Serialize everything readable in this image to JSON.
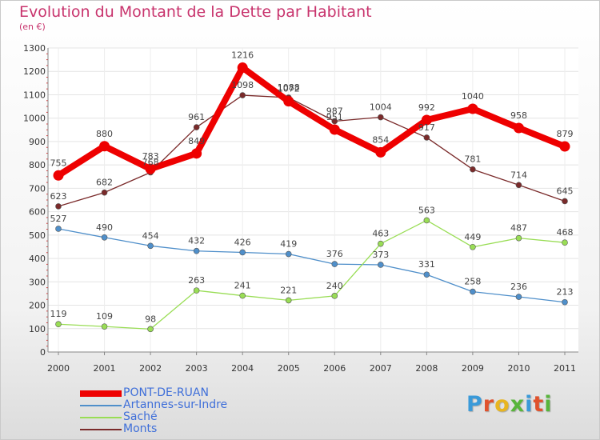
{
  "header": {
    "title": "Evolution du Montant de la Dette par Habitant",
    "subtitle": "(en €)"
  },
  "logo": {
    "text": "Proxiti",
    "colors": [
      "#3a9ad9",
      "#e0522d",
      "#e8b520",
      "#58b53b",
      "#3a9ad9",
      "#e0522d",
      "#58b53b"
    ]
  },
  "chart_data": {
    "type": "line",
    "title": "Evolution du Montant de la Dette par Habitant",
    "subtitle": "(en €)",
    "xlabel": "",
    "ylabel": "",
    "x": [
      "2000",
      "2001",
      "2002",
      "2003",
      "2004",
      "2005",
      "2006",
      "2007",
      "2008",
      "2009",
      "2010",
      "2011"
    ],
    "ylim": [
      0,
      1300
    ],
    "yticks": [
      0,
      100,
      200,
      300,
      400,
      500,
      600,
      700,
      800,
      900,
      1000,
      1100,
      1200,
      1300
    ],
    "grid": true,
    "legend_position": "bottom-left",
    "series": [
      {
        "name": "PONT-DE-RUAN",
        "color": "#ee0000",
        "values": [
          755,
          880,
          783,
          849,
          1216,
          1072,
          951,
          854,
          992,
          1040,
          958,
          879
        ]
      },
      {
        "name": "Artannes-sur-Indre",
        "color": "#4f8fca",
        "values": [
          527,
          490,
          454,
          432,
          426,
          419,
          376,
          373,
          331,
          258,
          236,
          213
        ]
      },
      {
        "name": "Saché",
        "color": "#99dd55",
        "values": [
          119,
          109,
          98,
          263,
          241,
          221,
          240,
          463,
          563,
          449,
          487,
          468
        ]
      },
      {
        "name": "Monts",
        "color": "#7a2a2a",
        "values": [
          623,
          682,
          768,
          961,
          1098,
          1088,
          987,
          1004,
          917,
          781,
          714,
          645
        ]
      }
    ]
  }
}
